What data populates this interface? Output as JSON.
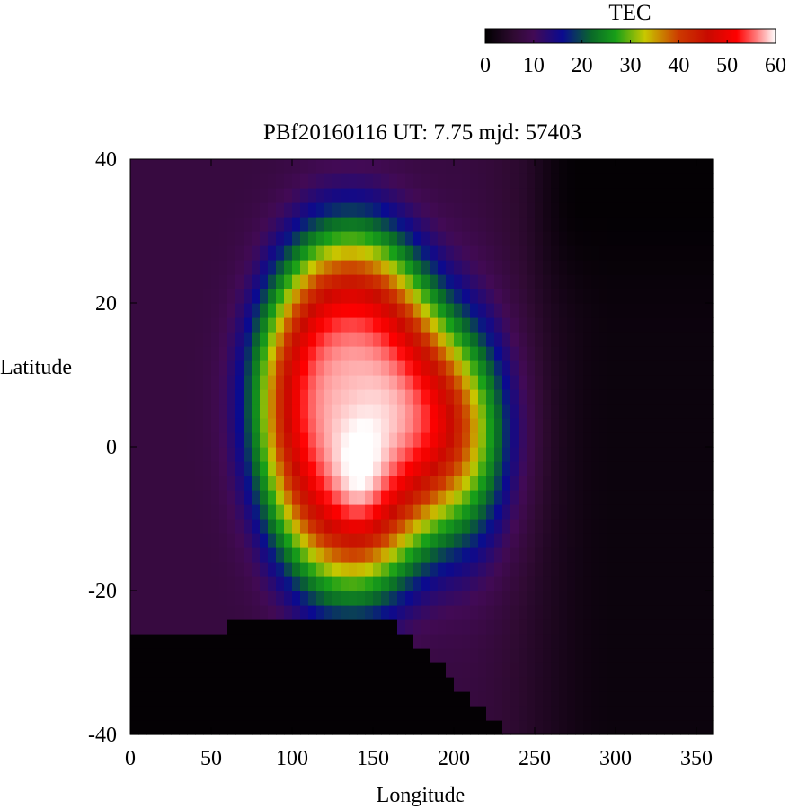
{
  "chart_data": {
    "type": "heatmap",
    "title": "PBf20160116  UT: 7.75  mjd: 57403",
    "xlabel": "Longitude",
    "ylabel": "Latitude",
    "xlim": [
      0,
      360
    ],
    "ylim": [
      -40,
      40
    ],
    "x_ticks": [
      "0",
      "50",
      "100",
      "150",
      "200",
      "250",
      "300",
      "350"
    ],
    "y_ticks": [
      "40",
      "20",
      "0",
      "-20",
      "-40"
    ],
    "grid": false,
    "colorbar": {
      "title": "TEC",
      "range": [
        0,
        60
      ],
      "ticks": [
        "0",
        "10",
        "20",
        "30",
        "40",
        "50",
        "60"
      ],
      "stops": [
        {
          "v": 0,
          "color": "#000000"
        },
        {
          "v": 6,
          "color": "#300a33"
        },
        {
          "v": 10,
          "color": "#420a55"
        },
        {
          "v": 16,
          "color": "#0a0a90"
        },
        {
          "v": 22,
          "color": "#0a6a28"
        },
        {
          "v": 27,
          "color": "#18a018"
        },
        {
          "v": 33,
          "color": "#c8c800"
        },
        {
          "v": 40,
          "color": "#cc3a00"
        },
        {
          "v": 46,
          "color": "#c80a00"
        },
        {
          "v": 52,
          "color": "#ff0000"
        },
        {
          "v": 56,
          "color": "#ff7a7a"
        },
        {
          "v": 60,
          "color": "#ffffff"
        }
      ]
    },
    "grid_resolution": {
      "lon_step": 5,
      "lat_step": 2
    },
    "peak": {
      "lon": 142,
      "lat": -5,
      "tec": 55
    },
    "region_values": {
      "night_floor_tec": 1.5,
      "background_tec": 6,
      "south_low_tec": 0.5,
      "equatorial_band_tec": 50
    }
  }
}
